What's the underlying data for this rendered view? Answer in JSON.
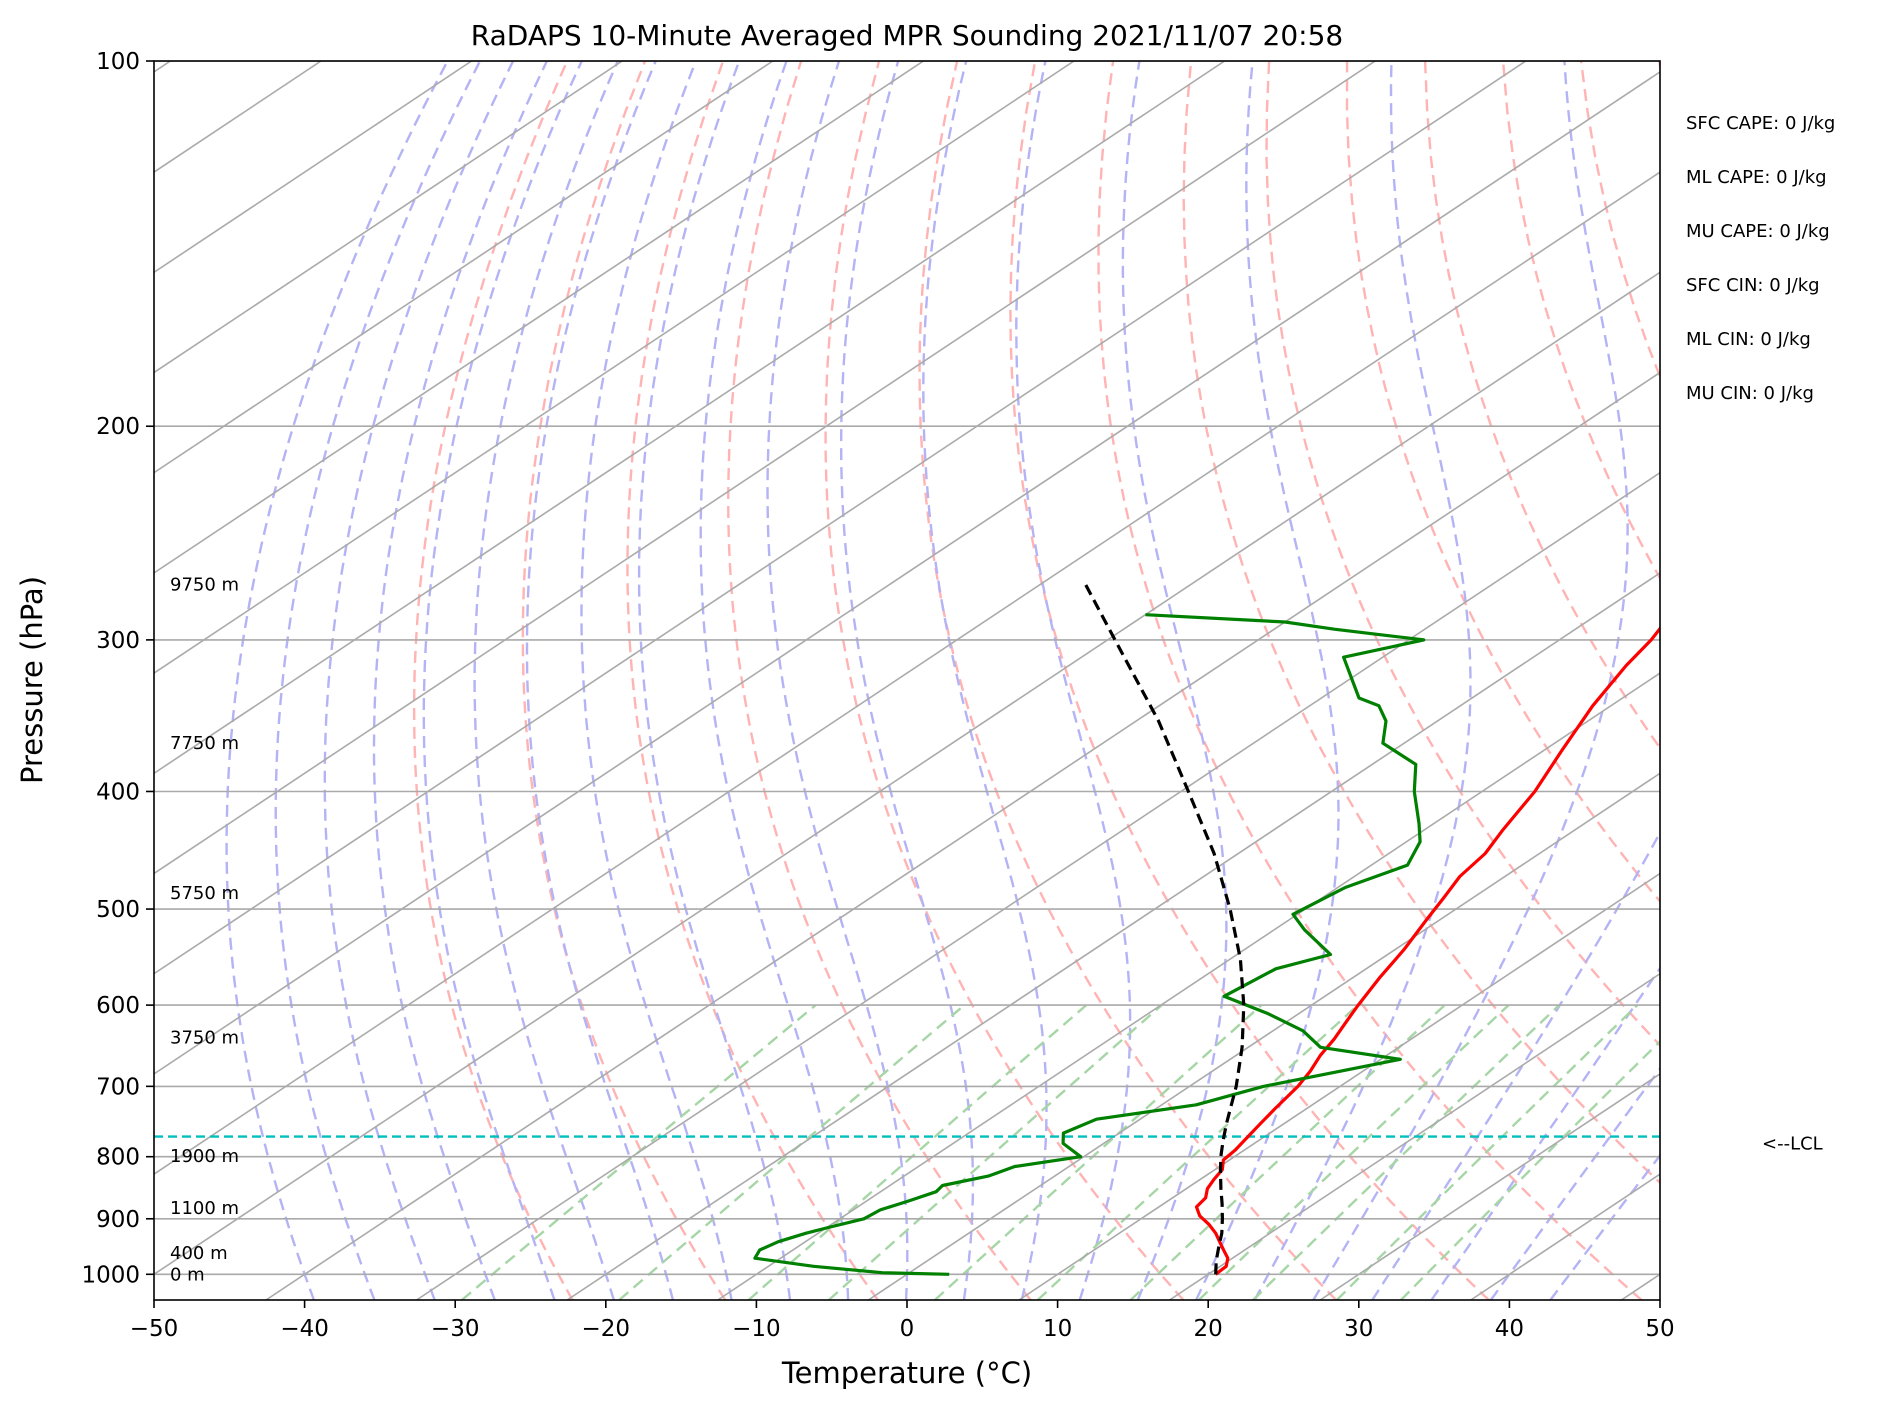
{
  "chart_data": {
    "type": "line",
    "subtype": "skew-T log-p sounding",
    "title": "RaDAPS 10-Minute Averaged MPR Sounding 2021/11/07 20:58",
    "xlabel": "Temperature (°C)",
    "ylabel": "Pressure (hPa)",
    "xlim": [
      -50,
      50
    ],
    "ylim": [
      1050,
      100
    ],
    "y_scale": "log",
    "grid": true,
    "x_ticks": [
      "−50",
      "−40",
      "−30",
      "−20",
      "−10",
      "0",
      "10",
      "20",
      "30",
      "40",
      "50"
    ],
    "y_ticks": [
      "100",
      "200",
      "300",
      "400",
      "500",
      "600",
      "700",
      "800",
      "900",
      "1000"
    ],
    "x_tick_values": [
      -50,
      -40,
      -30,
      -20,
      -10,
      0,
      10,
      20,
      30,
      40,
      50
    ],
    "y_tick_values": [
      100,
      200,
      300,
      400,
      500,
      600,
      700,
      800,
      900,
      1000
    ],
    "series": [
      {
        "role": "temperature",
        "color": "#ff0000",
        "style": "solid",
        "pressure": [
          1000,
          985,
          970,
          955,
          940,
          925,
          910,
          895,
          880,
          865,
          850,
          835,
          820,
          805,
          790,
          770,
          750,
          730,
          700,
          680,
          660,
          640,
          620,
          600,
          570,
          540,
          510,
          490,
          470,
          450,
          430,
          400,
          370,
          340,
          315,
          300,
          285,
          265
        ],
        "temperature": [
          20.5,
          20.4,
          19.7,
          18.6,
          17.5,
          16.4,
          15.1,
          13.6,
          12.5,
          12.2,
          11.4,
          10.9,
          10.5,
          9.6,
          9.4,
          8.9,
          8.4,
          7.9,
          7.2,
          6.5,
          5.6,
          4.9,
          4.0,
          3.1,
          1.8,
          0.6,
          -0.9,
          -1.9,
          -3.0,
          -3.6,
          -4.8,
          -6.5,
          -8.8,
          -11.2,
          -13.0,
          -13.9,
          -15.2,
          -17.0
        ]
      },
      {
        "role": "dewpoint",
        "color": "#008000",
        "style": "solid",
        "pressure": [
          1000,
          997,
          985,
          970,
          955,
          940,
          925,
          915,
          900,
          885,
          870,
          855,
          845,
          830,
          815,
          800,
          780,
          765,
          745,
          725,
          700,
          665,
          650,
          630,
          610,
          590,
          560,
          545,
          520,
          505,
          480,
          460,
          440,
          425,
          400,
          380,
          365,
          350,
          340,
          335,
          310,
          300,
          294,
          290,
          286
        ],
        "temperature": [
          2.8,
          -1.8,
          -7.0,
          -11.7,
          -12.2,
          -11.8,
          -10.8,
          -9.9,
          -8.4,
          -8.2,
          -7.2,
          -6.3,
          -6.5,
          -4.4,
          -3.6,
          -0.2,
          -2.7,
          -3.7,
          -2.9,
          2.3,
          4.9,
          11.3,
          4.8,
          2.0,
          -2.0,
          -6.7,
          -6.0,
          -3.8,
          -8.0,
          -10.3,
          -9.5,
          -7.6,
          -9.1,
          -11.0,
          -14.5,
          -17.1,
          -21.4,
          -23.4,
          -25.4,
          -27.5,
          -32.6,
          -29.0,
          -36.0,
          -40.0,
          -50.0
        ]
      },
      {
        "role": "parcel path",
        "color": "#000000",
        "style": "dashed",
        "pressure": [
          1000,
          975,
          950,
          925,
          900,
          875,
          850,
          825,
          800,
          780,
          770,
          750,
          700,
          650,
          600,
          550,
          500,
          450,
          400,
          350,
          300,
          270
        ],
        "temperature": [
          20.5,
          19.2,
          18.0,
          16.8,
          15.4,
          13.9,
          12.3,
          10.7,
          9.1,
          7.9,
          7.3,
          6.1,
          3.1,
          -0.4,
          -4.5,
          -9.3,
          -15.0,
          -21.6,
          -29.5,
          -38.5,
          -49.5,
          -57.0
        ]
      }
    ],
    "lcl_pressure": 770,
    "lcl_label": "<--LCL",
    "height_labels": [
      {
        "text": "9750 m",
        "pressure": 270
      },
      {
        "text": "7750 m",
        "pressure": 365
      },
      {
        "text": "5750 m",
        "pressure": 485
      },
      {
        "text": "3750 m",
        "pressure": 638
      },
      {
        "text": "1900 m",
        "pressure": 799
      },
      {
        "text": "1100 m",
        "pressure": 882
      },
      {
        "text": "400 m",
        "pressure": 960
      },
      {
        "text": "0 m",
        "pressure": 1000
      }
    ],
    "parameters": [
      "SFC CAPE: 0 J/kg",
      "ML CAPE: 0 J/kg",
      "MU CAPE: 0 J/kg",
      "SFC CIN: 0 J/kg",
      "ML CIN: 0 J/kg",
      "MU CIN: 0 J/kg"
    ],
    "colors": {
      "isotherm": "#aaaaaa",
      "isobar": "#aaaaaa",
      "dry_adiabat": "#ffb3b3",
      "moist_adiabat": "#b3b3f5",
      "mixing_ratio": "#a6d6a6",
      "lcl": "#00bfbf"
    }
  }
}
